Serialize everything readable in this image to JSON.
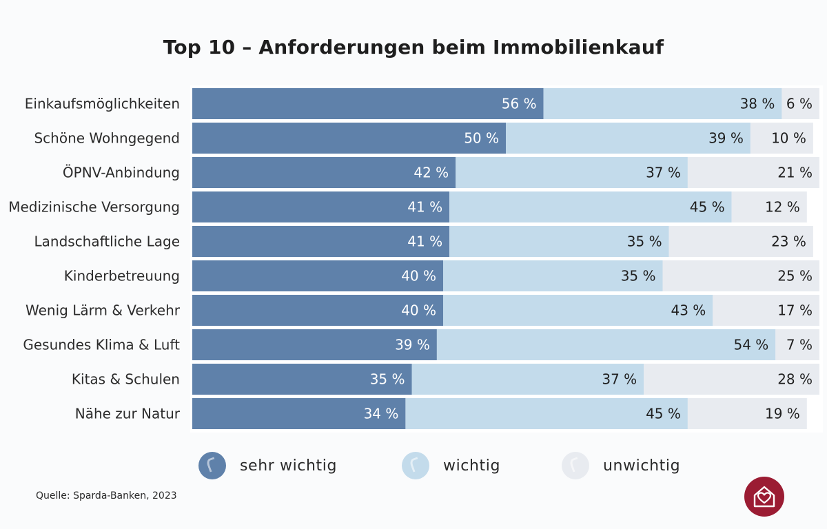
{
  "chart_data": {
    "type": "bar",
    "stacked": true,
    "orientation": "horizontal",
    "title": "Top 10 – Anforderungen beim Immobilienkauf",
    "categories": [
      "Einkaufsmöglichkeiten",
      "Schöne Wohngegend",
      "ÖPNV-Anbindung",
      "Medizinische Versorgung",
      "Landschaftliche Lage",
      "Kinderbetreuung",
      "Wenig Lärm & Verkehr",
      "Gesundes Klima & Luft",
      "Kitas & Schulen",
      "Nähe zur Natur"
    ],
    "series": [
      {
        "name": "sehr wichtig",
        "color": "#5f81aa",
        "values": [
          56,
          50,
          42,
          41,
          41,
          40,
          40,
          39,
          35,
          34
        ]
      },
      {
        "name": "wichtig",
        "color": "#c3dbeb",
        "values": [
          38,
          39,
          37,
          45,
          35,
          35,
          43,
          54,
          37,
          45
        ]
      },
      {
        "name": "unwichtig",
        "color": "#e8ebf0",
        "values": [
          6,
          10,
          21,
          12,
          23,
          25,
          17,
          7,
          28,
          19
        ]
      }
    ],
    "value_suffix": " %",
    "xlim": [
      0,
      100
    ],
    "grid": false,
    "legend_position": "bottom"
  },
  "legend": {
    "items": [
      {
        "label": "sehr wichtig",
        "color": "#5f81aa"
      },
      {
        "label": "wichtig",
        "color": "#c3dbeb"
      },
      {
        "label": "unwichtig",
        "color": "#e8ebf0"
      }
    ]
  },
  "source": "Quelle: Sparda-Banken, 2023",
  "logo_icon": "heart-house-icon"
}
